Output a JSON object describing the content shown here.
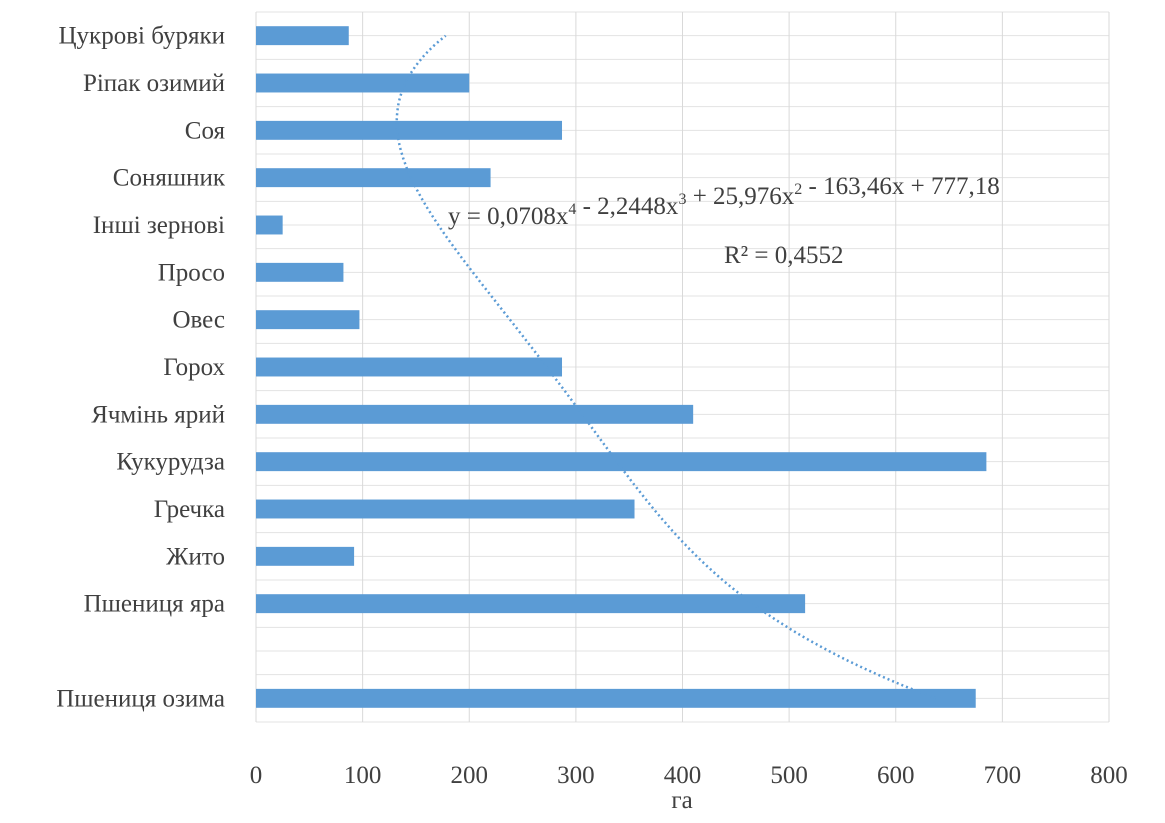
{
  "chart_data": {
    "type": "bar",
    "orientation": "horizontal",
    "categories": [
      "Пшениця озима",
      "",
      "Пшениця яра",
      "Жито",
      "Гречка",
      "Кукурудза",
      "Ячмінь ярий",
      "Горох",
      "Овес",
      "Просо",
      "Інші зернові",
      "Соняшник",
      "Соя",
      "Ріпак озимий",
      "Цукрові буряки"
    ],
    "values": [
      675,
      null,
      515,
      92,
      355,
      685,
      410,
      287,
      97,
      82,
      25,
      220,
      287,
      200,
      87
    ],
    "xlabel": "га",
    "ylabel": "",
    "xlim": [
      0,
      800
    ],
    "xticks": [
      "0",
      "100",
      "200",
      "300",
      "400",
      "500",
      "600",
      "700",
      "800"
    ],
    "grid": true,
    "legend": "none",
    "bar_color": "#5b9bd5",
    "trendline": {
      "type": "polynomial",
      "order": 4,
      "coefficients": [
        0.0708,
        -2.2448,
        25.976,
        -163.46,
        777.18
      ],
      "color": "#5b9bd5",
      "style": "dotted",
      "equation": "y = 0,0708x⁴ - 2,2448x³ + 25,976x² - 163,46x + 777,18",
      "r2_label": "R² = 0,4552"
    }
  }
}
